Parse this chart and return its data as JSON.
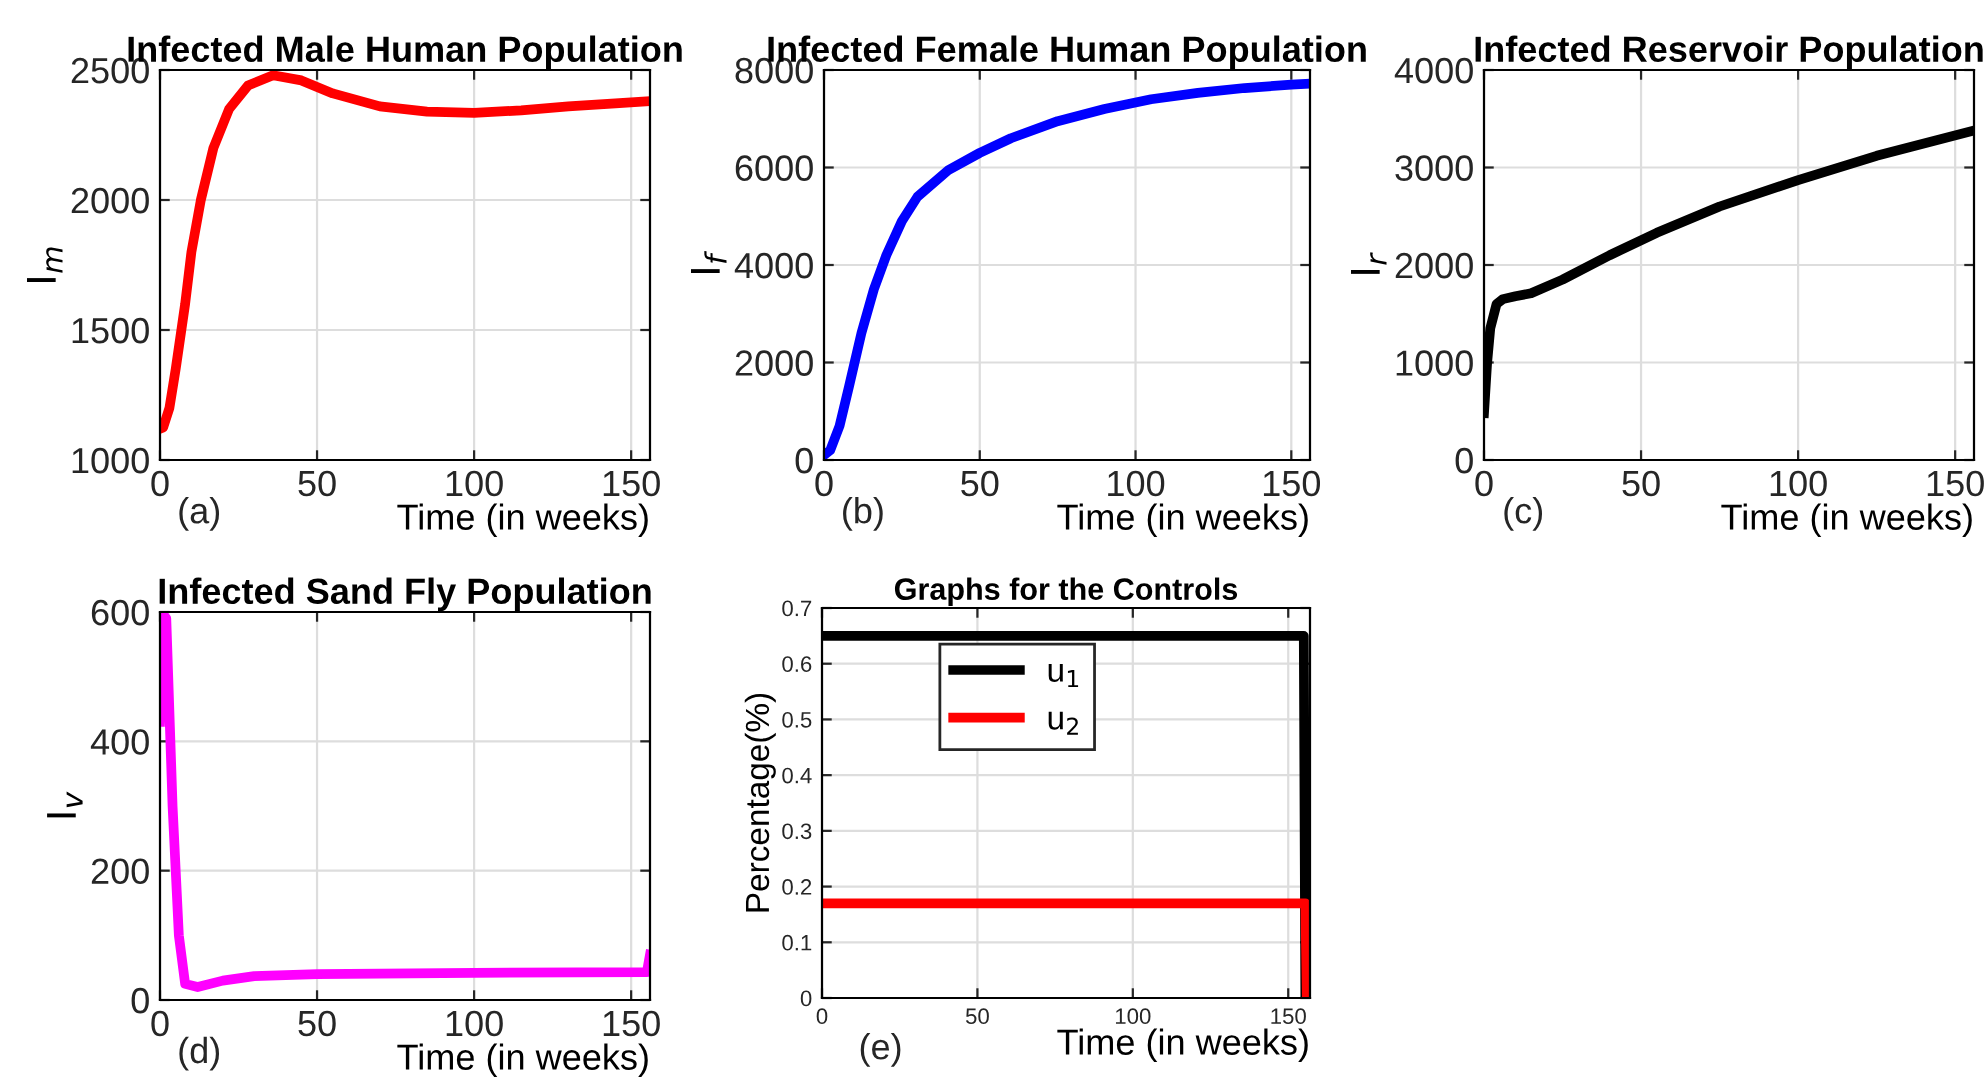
{
  "chart_data": [
    {
      "type": "line",
      "title": "Infected Male Human Population",
      "xlabel": "Time (in weeks)",
      "ylabel": "I$_{m}$",
      "annotations": [
        "(a)"
      ],
      "xlim": [
        0,
        156
      ],
      "ylim": [
        1000,
        2500
      ],
      "xticks": [
        0,
        50,
        100,
        150
      ],
      "yticks": [
        1000,
        1500,
        2000,
        2500
      ],
      "grid": true,
      "legend": false,
      "series": [
        {
          "color": "#ff0000",
          "x": [
            0,
            1,
            3,
            5,
            8,
            10,
            13,
            17,
            22,
            28,
            36,
            45,
            55,
            70,
            85,
            100,
            115,
            130,
            145,
            156
          ],
          "values": [
            1120,
            1125,
            1200,
            1350,
            1600,
            1800,
            2000,
            2200,
            2350,
            2440,
            2480,
            2460,
            2410,
            2360,
            2340,
            2335,
            2345,
            2360,
            2372,
            2380
          ]
        }
      ]
    },
    {
      "type": "line",
      "title": "Infected Female Human Population",
      "xlabel": "Time (in weeks)",
      "ylabel": "I$_{f}$",
      "annotations": [
        "(b)"
      ],
      "xlim": [
        0,
        156
      ],
      "ylim": [
        0,
        8000
      ],
      "xticks": [
        0,
        50,
        100,
        150
      ],
      "yticks": [
        0,
        2000,
        4000,
        6000,
        8000
      ],
      "grid": true,
      "legend": false,
      "series": [
        {
          "color": "#0000ff",
          "x": [
            0,
            2,
            5,
            8,
            12,
            16,
            20,
            25,
            30,
            40,
            50,
            60,
            75,
            90,
            105,
            120,
            135,
            150,
            156
          ],
          "values": [
            100,
            200,
            700,
            1500,
            2600,
            3500,
            4200,
            4900,
            5400,
            5950,
            6300,
            6600,
            6950,
            7200,
            7400,
            7530,
            7630,
            7700,
            7720
          ]
        }
      ]
    },
    {
      "type": "line",
      "title": "Infected Reservoir Population",
      "xlabel": "Time (in weeks)",
      "ylabel": "I$_{r}$",
      "annotations": [
        "(c)"
      ],
      "xlim": [
        0,
        156
      ],
      "ylim": [
        0,
        4000
      ],
      "xticks": [
        0,
        50,
        100,
        150
      ],
      "yticks": [
        0,
        1000,
        2000,
        3000,
        4000
      ],
      "grid": true,
      "legend": false,
      "series": [
        {
          "color": "#000000",
          "x": [
            0,
            1,
            2,
            4,
            6,
            10,
            15,
            25,
            40,
            55,
            75,
            100,
            125,
            156
          ],
          "values": [
            480,
            1000,
            1350,
            1600,
            1650,
            1680,
            1710,
            1850,
            2100,
            2330,
            2600,
            2870,
            3120,
            3380
          ]
        }
      ]
    },
    {
      "type": "line",
      "title": "Infected Sand Fly Population",
      "xlabel": "Time (in weeks)",
      "ylabel": "I$_{v}$",
      "annotations": [
        "(d)"
      ],
      "xlim": [
        0,
        156
      ],
      "ylim": [
        0,
        600
      ],
      "xticks": [
        0,
        50,
        100,
        150
      ],
      "yticks": [
        0,
        200,
        400,
        600
      ],
      "grid": true,
      "legend": false,
      "series": [
        {
          "color": "#ff00ff",
          "x": [
            0,
            0.5,
            2,
            4,
            6,
            8,
            12,
            20,
            30,
            50,
            100,
            155,
            156
          ],
          "values": [
            430,
            600,
            590,
            300,
            100,
            25,
            20,
            30,
            37,
            40,
            42,
            43,
            70
          ]
        }
      ]
    },
    {
      "type": "line",
      "title": "Graphs for the Controls",
      "xlabel": "Time (in weeks)",
      "ylabel": "Percentage(%)",
      "annotations": [
        "(e)"
      ],
      "xlim": [
        0,
        157
      ],
      "ylim": [
        0,
        0.7
      ],
      "xticks": [
        0,
        50,
        100,
        150
      ],
      "yticks": [
        0,
        0.1,
        0.2,
        0.3,
        0.4,
        0.5,
        0.6,
        0.7
      ],
      "grid": true,
      "legend": "top",
      "series": [
        {
          "name": "u$_{1}$",
          "color": "#000000",
          "x": [
            0,
            155,
            155.5
          ],
          "values": [
            0.65,
            0.65,
            0
          ]
        },
        {
          "name": "u$_{2}$",
          "color": "#ff0000",
          "x": [
            0,
            155.5,
            156
          ],
          "values": [
            0.17,
            0.17,
            0
          ]
        }
      ]
    }
  ]
}
